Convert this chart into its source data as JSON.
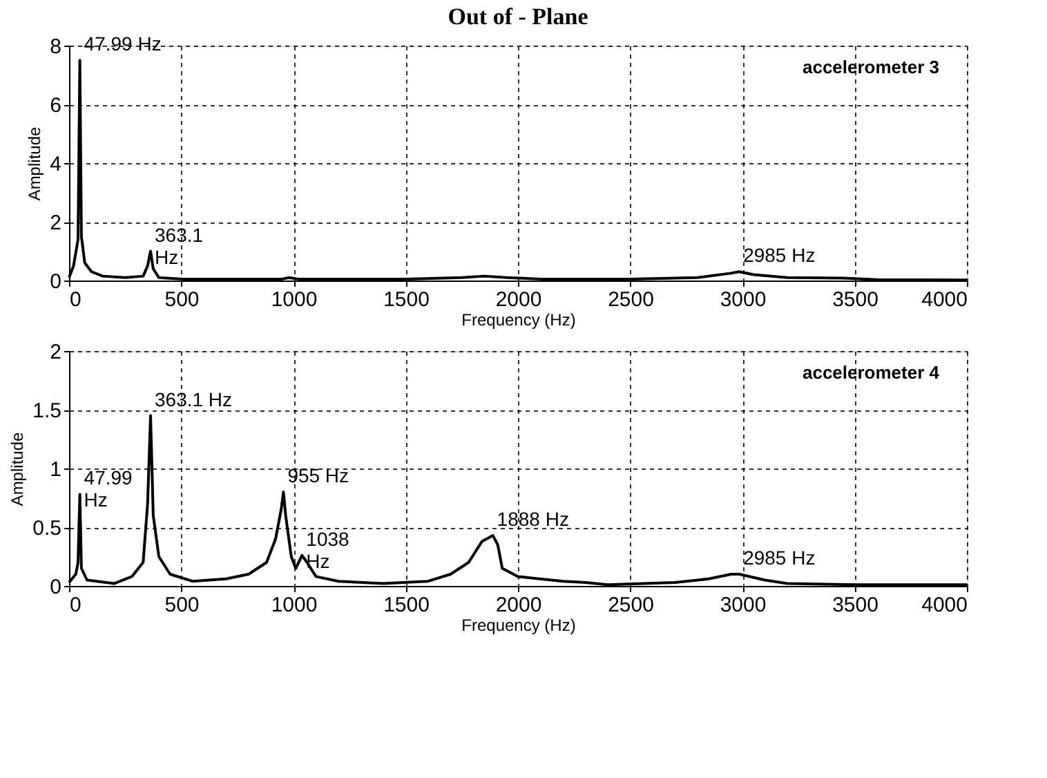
{
  "chart_data": [
    {
      "type": "line",
      "title": "Out of - Plane",
      "xlabel": "Frequency (Hz)",
      "ylabel": "Amplitude",
      "xlim": [
        0,
        4000
      ],
      "xticks": [
        0,
        500,
        1000,
        1500,
        2000,
        2500,
        3000,
        3500,
        4000
      ],
      "ylim": [
        0,
        8
      ],
      "yticks": [
        0,
        2,
        4,
        6,
        8
      ],
      "grid": true,
      "line_style": "solid",
      "series": [
        {
          "name": "accelerometer 3",
          "color": "#000000",
          "x": [
            0,
            20,
            40,
            47.99,
            55,
            70,
            100,
            150,
            250,
            330,
            350,
            363.1,
            375,
            400,
            500,
            950,
            980,
            1020,
            1500,
            1750,
            1850,
            1950,
            2100,
            2500,
            2800,
            2950,
            2985,
            3050,
            3200,
            3450,
            3600,
            4000
          ],
          "values": [
            0.1,
            0.5,
            1.4,
            7.5,
            1.5,
            0.6,
            0.3,
            0.15,
            0.1,
            0.15,
            0.5,
            1.0,
            0.4,
            0.1,
            0.05,
            0.05,
            0.1,
            0.05,
            0.05,
            0.1,
            0.15,
            0.1,
            0.05,
            0.05,
            0.1,
            0.25,
            0.3,
            0.2,
            0.1,
            0.08,
            0.03,
            0.02
          ]
        }
      ],
      "annotations": [
        {
          "text": "47.99 Hz",
          "x": 47.99,
          "y": 7.5
        },
        {
          "text": "363.1\nHz",
          "x": 363.1,
          "y": 1.0
        },
        {
          "text": "2985 Hz",
          "x": 2985,
          "y": 0.3
        }
      ]
    },
    {
      "type": "line",
      "xlabel": "Frequency (Hz)",
      "ylabel": "Amplitude",
      "xlim": [
        0,
        4000
      ],
      "xticks": [
        0,
        500,
        1000,
        1500,
        2000,
        2500,
        3000,
        3500,
        4000
      ],
      "ylim": [
        0,
        2
      ],
      "yticks": [
        0,
        0.5,
        1,
        1.5,
        2
      ],
      "grid": true,
      "line_style": "solid",
      "series": [
        {
          "name": "accelerometer 4",
          "color": "#000000",
          "x": [
            0,
            30,
            40,
            47.99,
            55,
            80,
            200,
            280,
            330,
            350,
            363.1,
            375,
            400,
            450,
            550,
            700,
            800,
            880,
            920,
            945,
            955,
            965,
            990,
            1010,
            1038,
            1060,
            1100,
            1200,
            1400,
            1600,
            1700,
            1780,
            1840,
            1888,
            1910,
            1930,
            2000,
            2200,
            2300,
            2400,
            2700,
            2850,
            2950,
            2985,
            3100,
            3200,
            3500,
            4000
          ],
          "values": [
            0.03,
            0.1,
            0.2,
            0.78,
            0.15,
            0.05,
            0.02,
            0.08,
            0.2,
            0.7,
            1.45,
            0.6,
            0.25,
            0.1,
            0.04,
            0.06,
            0.1,
            0.2,
            0.4,
            0.65,
            0.8,
            0.6,
            0.25,
            0.15,
            0.26,
            0.2,
            0.08,
            0.04,
            0.02,
            0.04,
            0.1,
            0.2,
            0.38,
            0.43,
            0.35,
            0.15,
            0.08,
            0.04,
            0.03,
            0.01,
            0.03,
            0.06,
            0.1,
            0.1,
            0.05,
            0.02,
            0.01,
            0.01
          ]
        }
      ],
      "annotations": [
        {
          "text": "363.1 Hz",
          "x": 363.1,
          "y": 1.45
        },
        {
          "text": "47.99\nHz",
          "x": 47.99,
          "y": 0.78
        },
        {
          "text": "955 Hz",
          "x": 955,
          "y": 0.8
        },
        {
          "text": "1038\nHz",
          "x": 1038,
          "y": 0.26
        },
        {
          "text": "1888 Hz",
          "x": 1888,
          "y": 0.43
        },
        {
          "text": "2985 Hz",
          "x": 2985,
          "y": 0.1
        }
      ]
    }
  ]
}
